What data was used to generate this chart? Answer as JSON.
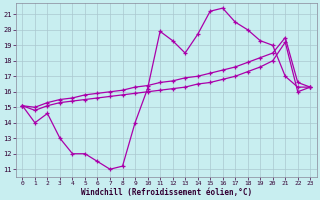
{
  "xlabel": "Windchill (Refroidissement éolien,°C)",
  "background_color": "#c8eef0",
  "grid_color": "#aac8d0",
  "line_color": "#aa00aa",
  "x_ticks": [
    0,
    1,
    2,
    3,
    4,
    5,
    6,
    7,
    8,
    9,
    10,
    11,
    12,
    13,
    14,
    15,
    16,
    17,
    18,
    19,
    20,
    21,
    22,
    23
  ],
  "y_ticks": [
    11,
    12,
    13,
    14,
    15,
    16,
    17,
    18,
    19,
    20,
    21
  ],
  "xlim": [
    -0.5,
    23.5
  ],
  "ylim": [
    10.5,
    21.7
  ],
  "series1_x": [
    0,
    1,
    2,
    3,
    4,
    5,
    6,
    7,
    8,
    9,
    10,
    11,
    12,
    13,
    14,
    15,
    16,
    17,
    18,
    19,
    20,
    21,
    22,
    23
  ],
  "series1_y": [
    15.1,
    14.0,
    14.6,
    13.0,
    12.0,
    12.0,
    11.5,
    11.0,
    11.2,
    14.0,
    16.2,
    19.9,
    19.3,
    18.5,
    19.7,
    21.2,
    21.4,
    20.5,
    20.0,
    19.3,
    19.0,
    17.0,
    16.3,
    16.3
  ],
  "series2_x": [
    0,
    1,
    2,
    3,
    4,
    5,
    6,
    7,
    8,
    9,
    10,
    11,
    12,
    13,
    14,
    15,
    16,
    17,
    18,
    19,
    20,
    21,
    22,
    23
  ],
  "series2_y": [
    15.1,
    14.8,
    15.1,
    15.3,
    15.4,
    15.5,
    15.6,
    15.7,
    15.8,
    15.9,
    16.0,
    16.1,
    16.2,
    16.3,
    16.5,
    16.6,
    16.8,
    17.0,
    17.3,
    17.6,
    18.0,
    19.2,
    16.0,
    16.3
  ],
  "series3_x": [
    0,
    1,
    2,
    3,
    4,
    5,
    6,
    7,
    8,
    9,
    10,
    11,
    12,
    13,
    14,
    15,
    16,
    17,
    18,
    19,
    20,
    21,
    22,
    23
  ],
  "series3_y": [
    15.1,
    15.0,
    15.3,
    15.5,
    15.6,
    15.8,
    15.9,
    16.0,
    16.1,
    16.3,
    16.4,
    16.6,
    16.7,
    16.9,
    17.0,
    17.2,
    17.4,
    17.6,
    17.9,
    18.2,
    18.5,
    19.5,
    16.6,
    16.3
  ]
}
